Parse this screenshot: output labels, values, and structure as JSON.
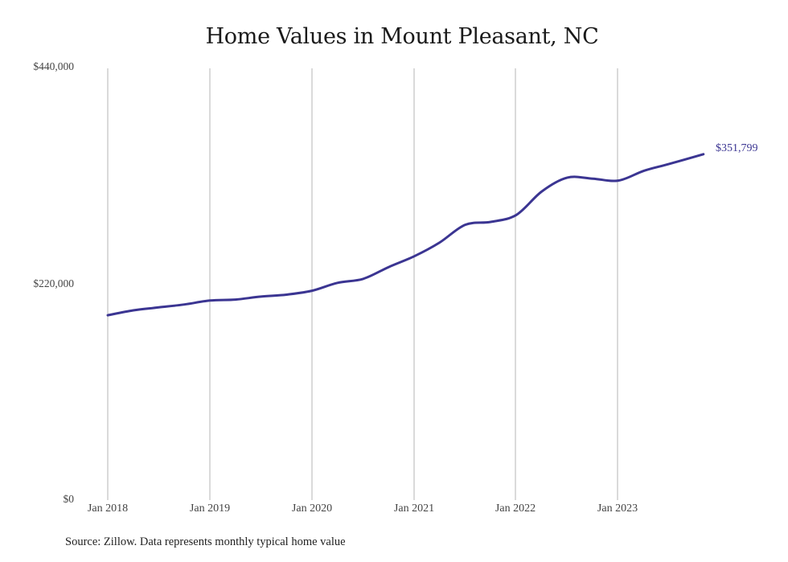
{
  "chart": {
    "title": "Home Values in Mount Pleasant, NC",
    "source": "Source: Zillow. Data represents monthly typical home value",
    "end_label": "$351,799",
    "line_color": "#3b3592",
    "grid_color": "#b5b5b5",
    "y_ticks": [
      "$440,000",
      "$220,000",
      "$0"
    ],
    "x_ticks": [
      "Jan 2018",
      "Jan 2019",
      "Jan 2020",
      "Jan 2021",
      "Jan 2022",
      "Jan 2023"
    ]
  },
  "chart_data": {
    "type": "line",
    "title": "Home Values in Mount Pleasant, NC",
    "xlabel": "",
    "ylabel": "",
    "ylim": [
      0,
      440000
    ],
    "y_ticks": [
      0,
      220000,
      440000
    ],
    "x_ticks": [
      "Jan 2018",
      "Jan 2019",
      "Jan 2020",
      "Jan 2021",
      "Jan 2022",
      "Jan 2023"
    ],
    "grid": "vertical",
    "legend": "none",
    "annotations": [
      {
        "text": "$351,799",
        "at": "last point"
      }
    ],
    "series": [
      {
        "name": "Typical home value",
        "x": [
          "Jan 2018",
          "Apr 2018",
          "Jul 2018",
          "Oct 2018",
          "Jan 2019",
          "Apr 2019",
          "Jul 2019",
          "Oct 2019",
          "Jan 2020",
          "Apr 2020",
          "Jul 2020",
          "Oct 2020",
          "Jan 2021",
          "Apr 2021",
          "Jul 2021",
          "Oct 2021",
          "Jan 2022",
          "Apr 2022",
          "Jul 2022",
          "Oct 2022",
          "Jan 2023",
          "Apr 2023",
          "Jul 2023",
          "Nov 2023"
        ],
        "values": [
          188000,
          193000,
          196000,
          199000,
          203000,
          204000,
          207000,
          209000,
          213000,
          221000,
          225000,
          237000,
          248000,
          262000,
          280000,
          283000,
          290000,
          314000,
          328000,
          327000,
          325000,
          335000,
          342000,
          351799
        ]
      }
    ],
    "source": "Source: Zillow. Data represents monthly typical home value"
  }
}
